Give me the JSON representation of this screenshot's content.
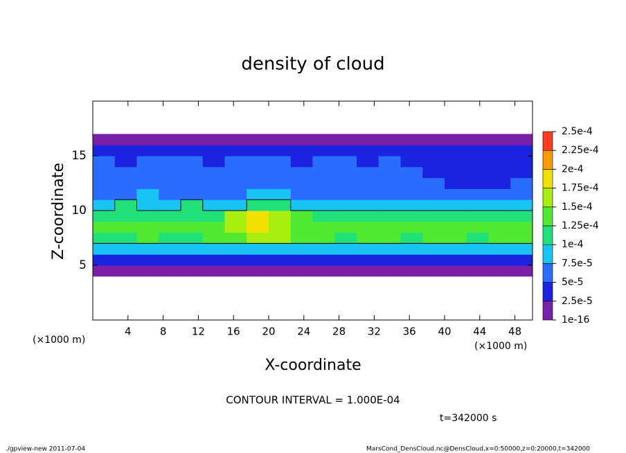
{
  "chart_data": {
    "type": "contour",
    "title": "density of cloud",
    "xlabel": "X-coordinate",
    "ylabel": "Z-coordinate",
    "x_unit_label": "(×1000 m)",
    "contour_interval": {
      "value": 0.0001,
      "label": "CONTOUR INTERVAL = 1.000E-04"
    },
    "time_label": "t=342000 s",
    "footer_left": "./gpview-new  2011-07-04",
    "footer_right": "MarsCond_DensCloud.nc@DensCloud,x=0:50000,z=0:20000,t=342000",
    "xlim": [
      0,
      50
    ],
    "ylim": [
      0,
      20
    ],
    "xticks": [
      4,
      8,
      12,
      16,
      20,
      24,
      28,
      32,
      36,
      40,
      44,
      48
    ],
    "yticks": [
      5,
      10,
      15
    ],
    "colorbar_ticks": [
      {
        "value": 1e-16,
        "label": "1e-16"
      },
      {
        "value": 2.5e-05,
        "label": "2.5e-5"
      },
      {
        "value": 5e-05,
        "label": "5e-5"
      },
      {
        "value": 7.5e-05,
        "label": "7.5e-5"
      },
      {
        "value": 0.0001,
        "label": "1e-4"
      },
      {
        "value": 0.000125,
        "label": "1.25e-4"
      },
      {
        "value": 0.00015,
        "label": "1.5e-4"
      },
      {
        "value": 0.000175,
        "label": "1.75e-4"
      },
      {
        "value": 0.0002,
        "label": "2e-4"
      },
      {
        "value": 0.000225,
        "label": "2.25e-4"
      },
      {
        "value": 0.00025,
        "label": "2.5e-4"
      }
    ],
    "colors": [
      "#7a1fa8",
      "#1a24e0",
      "#2a6cff",
      "#18c4f4",
      "#20e07a",
      "#50e830",
      "#a8ee10",
      "#f4e000",
      "#ff9a00",
      "#ff3a20"
    ],
    "x": [
      1.25,
      3.75,
      6.25,
      8.75,
      11.25,
      13.75,
      16.25,
      18.75,
      21.25,
      23.75,
      26.25,
      28.75,
      31.25,
      33.75,
      36.25,
      38.75,
      41.25,
      43.75,
      46.25,
      48.75
    ],
    "z": [
      4.5,
      5.5,
      6.5,
      7.5,
      8.5,
      9.5,
      10.5,
      11.5,
      12.5,
      13.5,
      14.5,
      15.5,
      16.5
    ],
    "values": [
      [
        1e-05,
        1e-05,
        1e-05,
        1e-05,
        1e-05,
        1e-05,
        1e-05,
        1e-05,
        1e-05,
        1e-05,
        1e-05,
        1e-05,
        1e-05,
        1e-05,
        1e-05,
        1e-05,
        1e-05,
        1e-05,
        1e-05,
        1e-05
      ],
      [
        3e-05,
        2.8e-05,
        3.2e-05,
        3e-05,
        2.6e-05,
        3.4e-05,
        3e-05,
        2.9e-05,
        3.1e-05,
        3.3e-05,
        2.7e-05,
        3e-05,
        3.2e-05,
        2.8e-05,
        3e-05,
        3.1e-05,
        2.9e-05,
        3.3e-05,
        3e-05,
        2.8e-05
      ],
      [
        8.2e-05,
        7.6e-05,
        8.8e-05,
        9.1e-05,
        8e-05,
        8.5e-05,
        9.4e-05,
        8.7e-05,
        8.3e-05,
        7.9e-05,
        8.6e-05,
        9e-05,
        8.4e-05,
        8.1e-05,
        8.8e-05,
        9.2e-05,
        8.5e-05,
        8e-05,
        8.9e-05,
        8.3e-05
      ],
      [
        0.000122,
        0.000118,
        0.000128,
        0.000115,
        0.000124,
        0.00013,
        0.000142,
        0.000155,
        0.000152,
        0.000138,
        0.000126,
        0.00012,
        0.000131,
        0.000127,
        0.000119,
        0.000125,
        0.00013,
        0.000122,
        0.000128,
        0.000133
      ],
      [
        0.000132,
        0.000128,
        0.000125,
        0.000135,
        0.00013,
        0.000141,
        0.000162,
        0.000178,
        0.000174,
        0.000148,
        0.000136,
        0.000129,
        0.000134,
        0.000131,
        0.000127,
        0.000133,
        0.000129,
        0.000136,
        0.00013,
        0.000138
      ],
      [
        0.000118,
        0.000112,
        0.00012,
        0.00011,
        0.000116,
        0.000124,
        0.000155,
        0.000186,
        0.000172,
        0.00013,
        0.000114,
        0.000108,
        0.000115,
        0.000119,
        0.000111,
        0.000117,
        0.000113,
        0.00012,
        0.000115,
        0.000122
      ],
      [
        9.5e-05,
        0.000102,
        8.8e-05,
        9.7e-05,
        0.000103,
        9.1e-05,
        9.8e-05,
        0.000112,
        0.000105,
        9.6e-05,
        9.2e-05,
        8.9e-05,
        9.4e-05,
        8.7e-05,
        9e-05,
        8.5e-05,
        8.8e-05,
        9.1e-05,
        8.6e-05,
        9.3e-05
      ],
      [
        7.2e-05,
        6.8e-05,
        7.5e-05,
        7e-05,
        6.6e-05,
        7.3e-05,
        7.1e-05,
        7.8e-05,
        7.6e-05,
        7e-05,
        6.9e-05,
        7.2e-05,
        6.7e-05,
        7.1e-05,
        6.5e-05,
        6.8e-05,
        6.2e-05,
        6.4e-05,
        6.6e-05,
        6.9e-05
      ],
      [
        6.1e-05,
        5.8e-05,
        6.3e-05,
        5.9e-05,
        6.2e-05,
        6e-05,
        5.7e-05,
        6.4e-05,
        6.1e-05,
        5.8e-05,
        6e-05,
        5.6e-05,
        5.9e-05,
        5.5e-05,
        5.7e-05,
        5.2e-05,
        4.6e-05,
        4.4e-05,
        4.7e-05,
        5e-05
      ],
      [
        5.6e-05,
        5.3e-05,
        5.7e-05,
        5.5e-05,
        5.2e-05,
        5.4e-05,
        5.6e-05,
        5.1e-05,
        5.5e-05,
        5.3e-05,
        5.8e-05,
        5.4e-05,
        5.2e-05,
        5.5e-05,
        5.1e-05,
        4.8e-05,
        4.2e-05,
        4e-05,
        4.3e-05,
        4.6e-05
      ],
      [
        5.2e-05,
        4.9e-05,
        5.3e-05,
        5e-05,
        5.1e-05,
        4.8e-05,
        5.2e-05,
        5e-05,
        5.4e-05,
        4.9e-05,
        5.1e-05,
        5.3e-05,
        4.8e-05,
        5e-05,
        4.7e-05,
        4.9e-05,
        4.3e-05,
        4.1e-05,
        4.4e-05,
        4.6e-05
      ],
      [
        3.6e-05,
        3.3e-05,
        3.8e-05,
        3.5e-05,
        3.2e-05,
        3.7e-05,
        3.4e-05,
        3.6e-05,
        3.3e-05,
        3.5e-05,
        3.8e-05,
        3.4e-05,
        3.6e-05,
        3.2e-05,
        3.5e-05,
        3.3e-05,
        3.1e-05,
        3.4e-05,
        3.2e-05,
        3.5e-05
      ],
      [
        1e-05,
        1e-05,
        1e-05,
        1e-05,
        1e-05,
        1e-05,
        1e-05,
        1e-05,
        1e-05,
        1e-05,
        1e-05,
        1e-05,
        1e-05,
        1e-05,
        1e-05,
        1e-05,
        1e-05,
        1e-05,
        1e-05,
        1e-05
      ]
    ]
  }
}
